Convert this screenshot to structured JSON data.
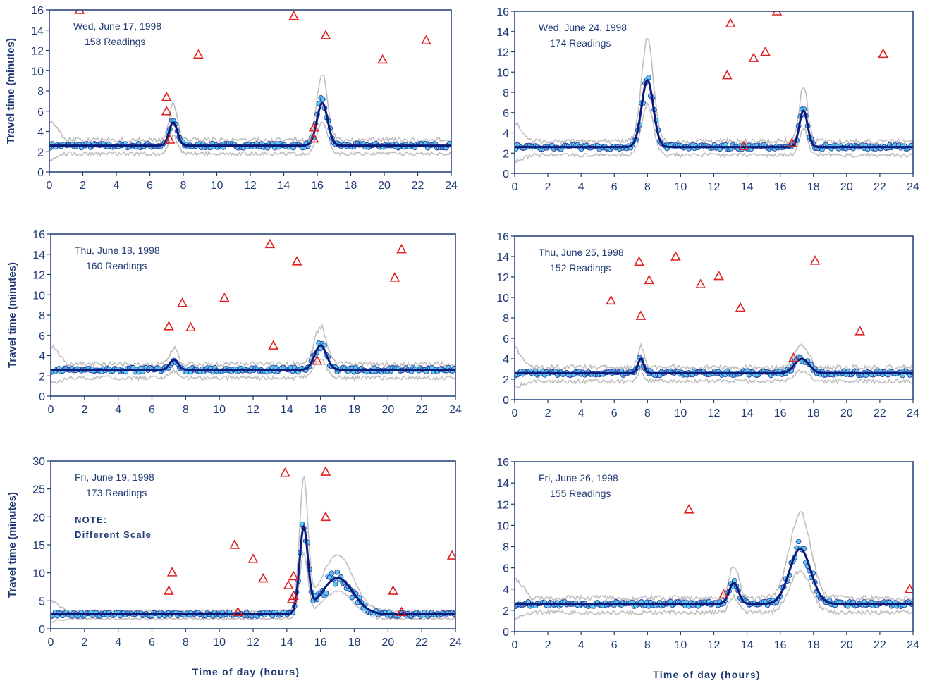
{
  "chart_data": [
    {
      "type": "scatter",
      "title": "Wed, June 17, 1998",
      "subtitle": "158 Readings",
      "note": [
        "",
        ""
      ],
      "ylabel": "Travel time (minutes)",
      "xlabel": "",
      "xlim": [
        0,
        24
      ],
      "ylim": [
        0,
        16
      ],
      "xticks": [
        0,
        2,
        4,
        6,
        8,
        10,
        12,
        14,
        16,
        18,
        20,
        22,
        24
      ],
      "yticks": [
        0,
        2,
        4,
        6,
        8,
        10,
        12,
        14,
        16
      ],
      "grid": false,
      "colors": {
        "readings": "#5bc8ef",
        "median": "#0a1a7a",
        "band": "#bfbfbf",
        "outliers": "#e02020",
        "axis": "#1f3a73"
      },
      "peaks": [
        {
          "t": 7.4,
          "h": 2.3,
          "w": 0.35
        },
        {
          "t": 16.3,
          "h": 4.2,
          "w": 0.45
        }
      ],
      "baseline": 2.6,
      "outliers": [
        [
          7.0,
          7.4
        ],
        [
          7.0,
          6.0
        ],
        [
          7.2,
          3.2
        ],
        [
          8.9,
          11.6
        ],
        [
          14.6,
          15.4
        ],
        [
          15.8,
          3.3
        ],
        [
          15.8,
          4.4
        ],
        [
          16.5,
          13.5
        ],
        [
          19.9,
          11.1
        ],
        [
          22.5,
          13.0
        ],
        [
          1.8,
          16.0
        ]
      ]
    },
    {
      "type": "scatter",
      "title": "Wed, June 24, 1998",
      "subtitle": "174 Readings",
      "note": [
        "",
        ""
      ],
      "ylabel": "",
      "xlabel": "",
      "xlim": [
        0,
        24
      ],
      "ylim": [
        0,
        16
      ],
      "xticks": [
        0,
        2,
        4,
        6,
        8,
        10,
        12,
        14,
        16,
        18,
        20,
        22,
        24
      ],
      "yticks": [
        0,
        2,
        4,
        6,
        8,
        10,
        12,
        14,
        16
      ],
      "grid": false,
      "colors": {
        "readings": "#5bc8ef",
        "median": "#0a1a7a",
        "band": "#bfbfbf",
        "outliers": "#e02020",
        "axis": "#1f3a73"
      },
      "peaks": [
        {
          "t": 8.0,
          "h": 6.6,
          "w": 0.5
        },
        {
          "t": 17.4,
          "h": 3.6,
          "w": 0.35
        }
      ],
      "baseline": 2.6,
      "outliers": [
        [
          12.8,
          9.7
        ],
        [
          13.0,
          14.8
        ],
        [
          14.4,
          11.4
        ],
        [
          15.1,
          12.0
        ],
        [
          15.8,
          16.0
        ],
        [
          13.8,
          2.7
        ],
        [
          16.7,
          3.0
        ],
        [
          22.2,
          11.8
        ]
      ]
    },
    {
      "type": "scatter",
      "title": "Thu, June 18, 1998",
      "subtitle": "160 Readings",
      "note": [
        "",
        ""
      ],
      "ylabel": "Travel time (minutes)",
      "xlabel": "",
      "xlim": [
        0,
        24
      ],
      "ylim": [
        0,
        16
      ],
      "xticks": [
        0,
        2,
        4,
        6,
        8,
        10,
        12,
        14,
        16,
        18,
        20,
        22,
        24
      ],
      "yticks": [
        0,
        2,
        4,
        6,
        8,
        10,
        12,
        14,
        16
      ],
      "grid": false,
      "colors": {
        "readings": "#5bc8ef",
        "median": "#0a1a7a",
        "band": "#bfbfbf",
        "outliers": "#e02020",
        "axis": "#1f3a73"
      },
      "peaks": [
        {
          "t": 7.3,
          "h": 1.0,
          "w": 0.35
        },
        {
          "t": 16.0,
          "h": 2.4,
          "w": 0.5
        }
      ],
      "baseline": 2.6,
      "outliers": [
        [
          7.0,
          6.9
        ],
        [
          7.8,
          9.2
        ],
        [
          8.3,
          6.8
        ],
        [
          10.3,
          9.7
        ],
        [
          13.0,
          15.0
        ],
        [
          13.2,
          5.0
        ],
        [
          14.6,
          13.3
        ],
        [
          15.8,
          3.5
        ],
        [
          20.4,
          11.7
        ],
        [
          20.8,
          14.5
        ]
      ]
    },
    {
      "type": "scatter",
      "title": "Thu, June 25, 1998",
      "subtitle": "152 Readings",
      "note": [
        "",
        ""
      ],
      "ylabel": "",
      "xlabel": "",
      "xlim": [
        0,
        24
      ],
      "ylim": [
        0,
        16
      ],
      "xticks": [
        0,
        2,
        4,
        6,
        8,
        10,
        12,
        14,
        16,
        18,
        20,
        22,
        24
      ],
      "yticks": [
        0,
        2,
        4,
        6,
        8,
        10,
        12,
        14,
        16
      ],
      "grid": false,
      "colors": {
        "readings": "#5bc8ef",
        "median": "#0a1a7a",
        "band": "#bfbfbf",
        "outliers": "#e02020",
        "axis": "#1f3a73"
      },
      "peaks": [
        {
          "t": 7.6,
          "h": 1.4,
          "w": 0.25
        },
        {
          "t": 17.3,
          "h": 1.4,
          "w": 0.6
        }
      ],
      "baseline": 2.6,
      "outliers": [
        [
          5.8,
          9.7
        ],
        [
          7.5,
          13.5
        ],
        [
          7.6,
          8.2
        ],
        [
          8.1,
          11.7
        ],
        [
          9.7,
          14.0
        ],
        [
          11.2,
          11.3
        ],
        [
          12.3,
          12.1
        ],
        [
          13.6,
          9.0
        ],
        [
          16.8,
          4.1
        ],
        [
          18.1,
          13.6
        ],
        [
          20.8,
          6.7
        ]
      ]
    },
    {
      "type": "scatter",
      "title": "Fri, June 19, 1998",
      "subtitle": "173 Readings",
      "note": [
        "NOTE:",
        "Different Scale"
      ],
      "ylabel": "Travel time (minutes)",
      "xlabel": "Time of day (hours)",
      "xlim": [
        0,
        24
      ],
      "ylim": [
        0,
        30
      ],
      "xticks": [
        0,
        2,
        4,
        6,
        8,
        10,
        12,
        14,
        16,
        18,
        20,
        22,
        24
      ],
      "yticks": [
        0,
        5,
        10,
        15,
        20,
        25,
        30
      ],
      "grid": false,
      "colors": {
        "readings": "#5bc8ef",
        "median": "#0a1a7a",
        "band": "#bfbfbf",
        "outliers": "#e02020",
        "axis": "#1f3a73"
      },
      "peaks": [
        {
          "t": 15.0,
          "h": 15.0,
          "w": 0.35
        },
        {
          "t": 17.0,
          "h": 6.5,
          "w": 1.3
        }
      ],
      "baseline": 2.6,
      "outliers": [
        [
          7.0,
          6.8
        ],
        [
          7.2,
          10.1
        ],
        [
          10.9,
          15.0
        ],
        [
          11.1,
          3.0
        ],
        [
          12.0,
          12.5
        ],
        [
          12.6,
          9.0
        ],
        [
          13.9,
          27.9
        ],
        [
          14.1,
          7.8
        ],
        [
          14.3,
          5.3
        ],
        [
          14.4,
          5.9
        ],
        [
          14.4,
          9.4
        ],
        [
          16.3,
          28.1
        ],
        [
          16.3,
          20.0
        ],
        [
          20.3,
          6.8
        ],
        [
          20.8,
          3.0
        ],
        [
          23.8,
          13.1
        ]
      ]
    },
    {
      "type": "scatter",
      "title": "Fri, June 26, 1998",
      "subtitle": "155 Readings",
      "note": [
        "",
        ""
      ],
      "ylabel": "",
      "xlabel": "Time of day (hours)",
      "xlim": [
        0,
        24
      ],
      "ylim": [
        0,
        16
      ],
      "xticks": [
        0,
        2,
        4,
        6,
        8,
        10,
        12,
        14,
        16,
        18,
        20,
        22,
        24
      ],
      "yticks": [
        0,
        2,
        4,
        6,
        8,
        10,
        12,
        14,
        16
      ],
      "grid": false,
      "colors": {
        "readings": "#5bc8ef",
        "median": "#0a1a7a",
        "band": "#bfbfbf",
        "outliers": "#e02020",
        "axis": "#1f3a73"
      },
      "peaks": [
        {
          "t": 13.2,
          "h": 2.0,
          "w": 0.4
        },
        {
          "t": 17.2,
          "h": 5.2,
          "w": 0.9
        }
      ],
      "baseline": 2.6,
      "outliers": [
        [
          10.5,
          11.5
        ],
        [
          12.6,
          3.5
        ],
        [
          23.8,
          4.0
        ]
      ]
    }
  ]
}
